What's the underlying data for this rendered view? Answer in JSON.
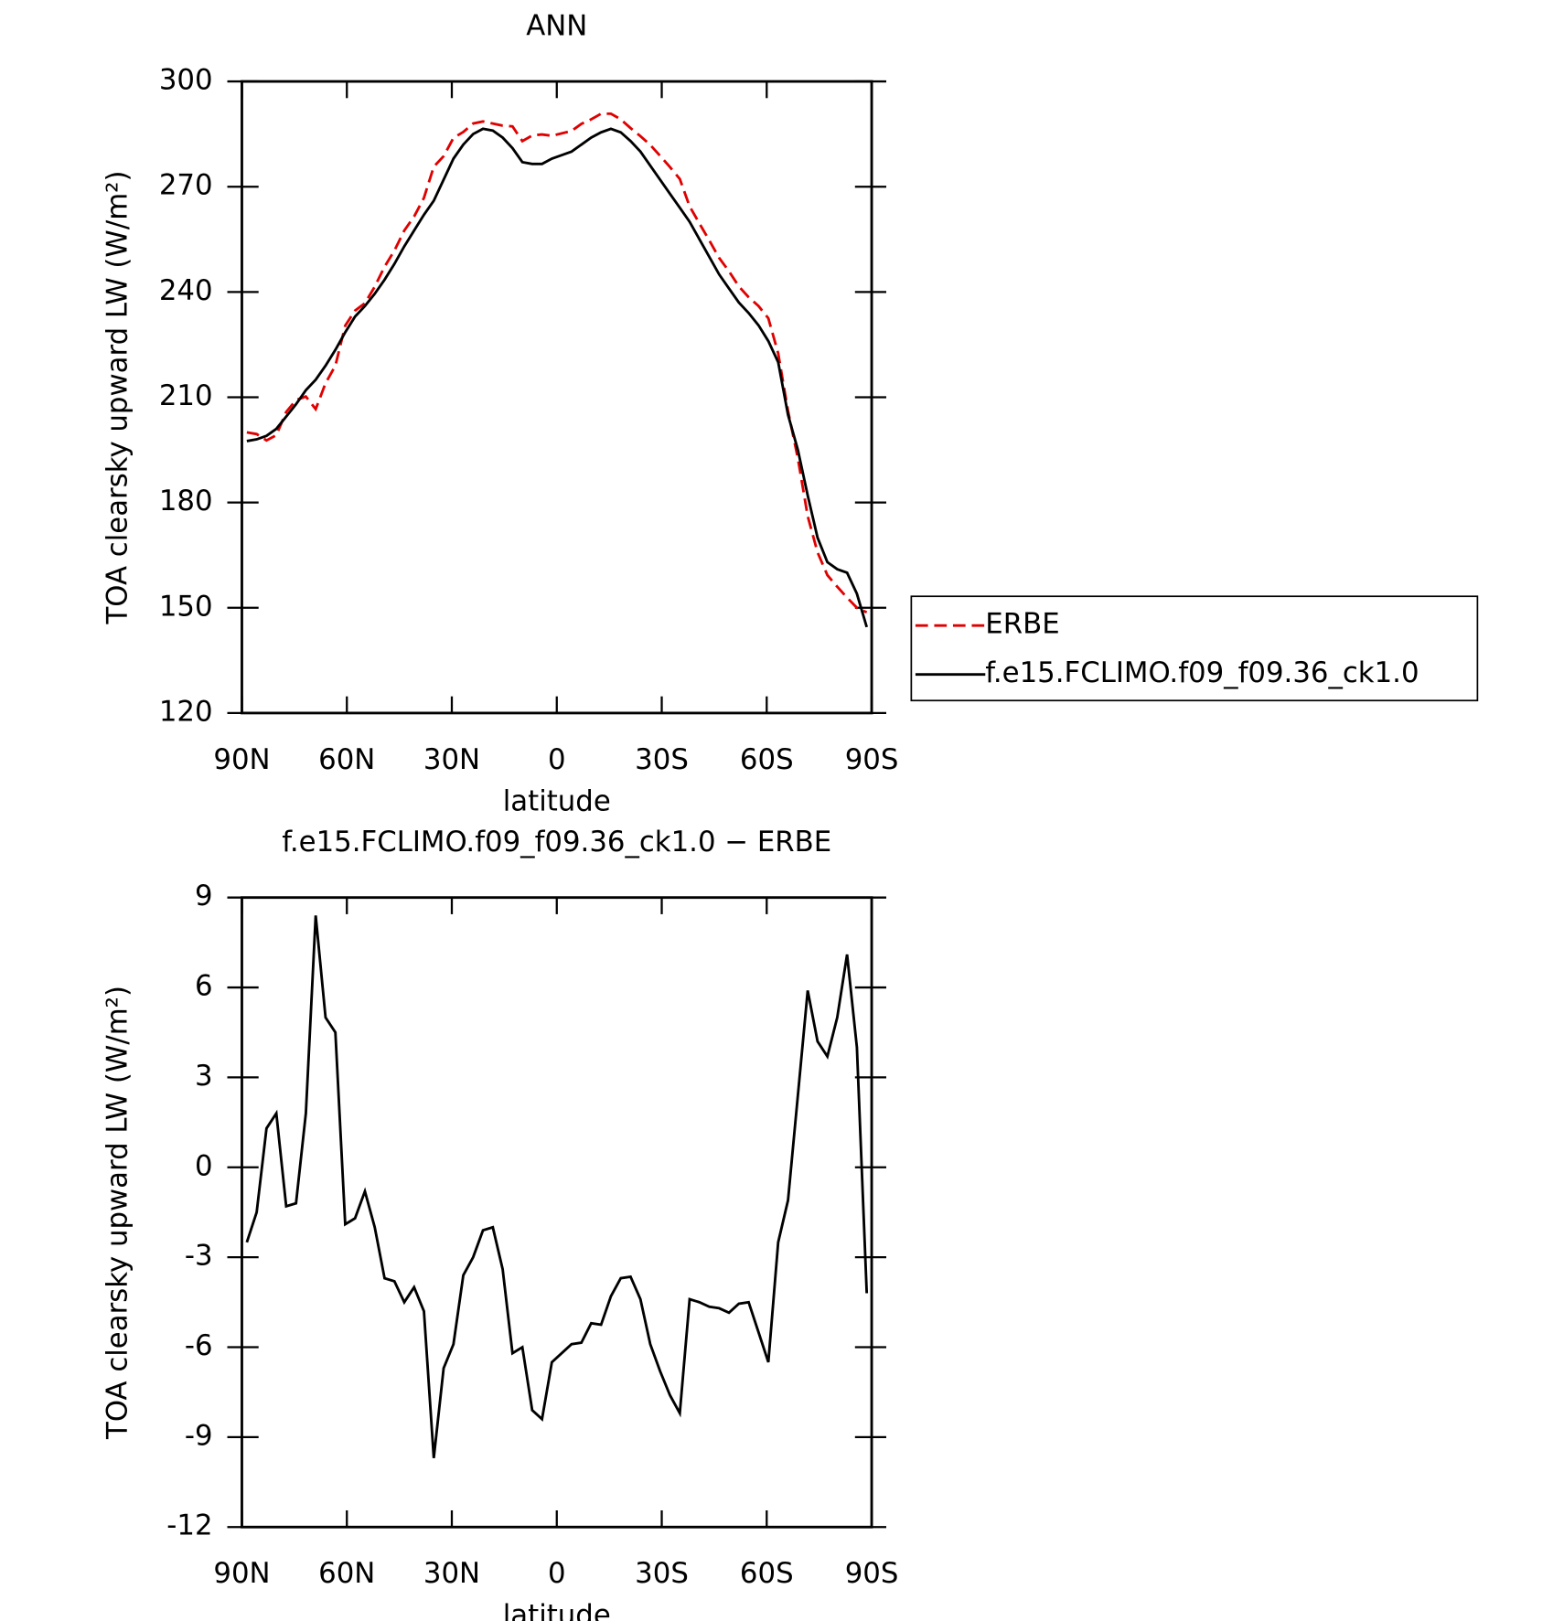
{
  "chart_data": [
    {
      "type": "line",
      "title": "ANN",
      "xlabel": "latitude",
      "ylabel": "TOA clearsky upward LW (W/m²)",
      "x": [
        88.59,
        85.78,
        82.97,
        80.16,
        77.34,
        74.53,
        71.72,
        68.91,
        66.09,
        63.28,
        60.47,
        57.66,
        54.84,
        52.03,
        49.22,
        46.41,
        43.59,
        40.78,
        37.97,
        35.16,
        32.34,
        29.53,
        26.72,
        23.91,
        21.09,
        18.28,
        15.47,
        12.66,
        9.84,
        7.03,
        4.22,
        1.41,
        -1.41,
        -4.22,
        -7.03,
        -9.84,
        -12.66,
        -15.47,
        -18.28,
        -21.09,
        -23.91,
        -26.72,
        -29.53,
        -32.34,
        -35.16,
        -37.97,
        -40.78,
        -43.59,
        -46.41,
        -49.22,
        -52.03,
        -54.84,
        -57.66,
        -60.47,
        -63.28,
        -66.09,
        -68.91,
        -71.72,
        -74.53,
        -77.34,
        -80.16,
        -82.97,
        -85.78,
        -88.59
      ],
      "xlim": [
        90,
        -90
      ],
      "xticks": [
        {
          "value": 90,
          "label": "90N"
        },
        {
          "value": 60,
          "label": "60N"
        },
        {
          "value": 30,
          "label": "30N"
        },
        0,
        {
          "value": -30,
          "label": "30S"
        },
        {
          "value": -60,
          "label": "60S"
        },
        {
          "value": -90,
          "label": "90S"
        }
      ],
      "ylim": [
        120,
        300
      ],
      "yticks": [
        120,
        150,
        180,
        210,
        240,
        270,
        300
      ],
      "legend": "outside right",
      "series": [
        {
          "name": "ERBE",
          "color": "#e00000",
          "linestyle": "dashed",
          "values": [
            200,
            199.5,
            197.7,
            199.2,
            205.8,
            209.2,
            210.2,
            206.6,
            214,
            219,
            230.4,
            234.7,
            236.8,
            241.5,
            247.2,
            251.8,
            257.5,
            261.5,
            266.8,
            275.7,
            278.7,
            283.9,
            285.6,
            288,
            288.6,
            288,
            287.4,
            287.2,
            283,
            284.6,
            284.9,
            284.5,
            285.2,
            285.9,
            287.9,
            289.2,
            290.8,
            290.8,
            289.2,
            286.7,
            284.4,
            281.9,
            278.8,
            275.6,
            272.2,
            264.4,
            259.5,
            254.7,
            249.7,
            245.9,
            241.6,
            238.5,
            236,
            232.5,
            222.5,
            206.1,
            192.6,
            176.1,
            165.8,
            159.3,
            156,
            152.9,
            150,
            148.7
          ]
        },
        {
          "name": "f.e15.FCLIMO.f09_f09.36_ck1.0",
          "color": "#000000",
          "linestyle": "solid",
          "values": [
            197.5,
            198,
            199,
            201,
            204.5,
            208,
            212,
            215,
            219,
            223.5,
            228.5,
            233,
            236,
            239.5,
            243.5,
            248,
            253,
            257.5,
            262,
            266,
            272,
            278,
            282,
            285,
            286.5,
            286,
            284,
            281,
            277,
            276.5,
            276.5,
            278,
            279,
            280,
            282,
            284,
            285.5,
            286.5,
            285.5,
            283,
            280,
            276,
            272,
            268,
            264,
            260,
            255,
            250,
            245,
            241,
            237,
            234,
            230.5,
            226,
            220,
            205,
            195,
            182,
            170,
            163,
            161,
            160,
            154,
            144.5
          ]
        }
      ]
    },
    {
      "type": "line",
      "title": "f.e15.FCLIMO.f09_f09.36_ck1.0 − ERBE",
      "xlabel": "latitude",
      "ylabel": "TOA clearsky upward LW (W/m²)",
      "x": [
        88.59,
        85.78,
        82.97,
        80.16,
        77.34,
        74.53,
        71.72,
        68.91,
        66.09,
        63.28,
        60.47,
        57.66,
        54.84,
        52.03,
        49.22,
        46.41,
        43.59,
        40.78,
        37.97,
        35.16,
        32.34,
        29.53,
        26.72,
        23.91,
        21.09,
        18.28,
        15.47,
        12.66,
        9.84,
        7.03,
        4.22,
        1.41,
        -1.41,
        -4.22,
        -7.03,
        -9.84,
        -12.66,
        -15.47,
        -18.28,
        -21.09,
        -23.91,
        -26.72,
        -29.53,
        -32.34,
        -35.16,
        -37.97,
        -40.78,
        -43.59,
        -46.41,
        -49.22,
        -52.03,
        -54.84,
        -57.66,
        -60.47,
        -63.28,
        -66.09,
        -68.91,
        -71.72,
        -74.53,
        -77.34,
        -80.16,
        -82.97,
        -85.78,
        -88.59
      ],
      "xlim": [
        90,
        -90
      ],
      "xticks": [
        {
          "value": 90,
          "label": "90N"
        },
        {
          "value": 60,
          "label": "60N"
        },
        {
          "value": 30,
          "label": "30N"
        },
        0,
        {
          "value": -30,
          "label": "30S"
        },
        {
          "value": -60,
          "label": "60S"
        },
        {
          "value": -90,
          "label": "90S"
        }
      ],
      "ylim": [
        -12,
        9
      ],
      "yticks": [
        -12,
        -9,
        -6,
        -3,
        0,
        3,
        6,
        9
      ],
      "series": [
        {
          "color": "#000000",
          "linestyle": "solid",
          "values": [
            -2.5,
            -1.5,
            1.3,
            1.8,
            -1.3,
            -1.2,
            1.8,
            8.4,
            5,
            4.5,
            -1.9,
            -1.7,
            -0.8,
            -2,
            -3.7,
            -3.8,
            -4.5,
            -4,
            -4.8,
            -9.7,
            -6.7,
            -5.9,
            -3.6,
            -3,
            -2.1,
            -2,
            -3.4,
            -6.2,
            -6,
            -8.1,
            -8.4,
            -6.5,
            -6.2,
            -5.9,
            -5.85,
            -5.2,
            -5.25,
            -4.3,
            -3.7,
            -3.65,
            -4.4,
            -5.9,
            -6.8,
            -7.6,
            -8.2,
            -4.4,
            -4.5,
            -4.65,
            -4.7,
            -4.85,
            -4.55,
            -4.5,
            -5.5,
            -6.5,
            -2.5,
            -1.1,
            2.4,
            5.9,
            4.2,
            3.7,
            5,
            7.1,
            4,
            -4.2
          ]
        }
      ]
    }
  ]
}
